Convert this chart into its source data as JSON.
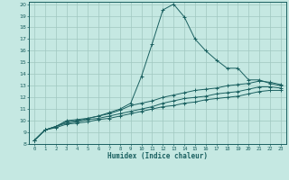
{
  "xlabel": "Humidex (Indice chaleur)",
  "ylabel": "",
  "background_color": "#c5e8e2",
  "grid_color": "#a0c8c0",
  "line_color": "#1a6060",
  "xlim": [
    -0.5,
    23.5
  ],
  "ylim": [
    8,
    20.2
  ],
  "xticks": [
    0,
    1,
    2,
    3,
    4,
    5,
    6,
    7,
    8,
    9,
    10,
    11,
    12,
    13,
    14,
    15,
    16,
    17,
    18,
    19,
    20,
    21,
    22,
    23
  ],
  "yticks": [
    8,
    9,
    10,
    11,
    12,
    13,
    14,
    15,
    16,
    17,
    18,
    19,
    20
  ],
  "series": [
    {
      "x": [
        0,
        1,
        2,
        3,
        4,
        5,
        6,
        7,
        8,
        9,
        10,
        11,
        12,
        13,
        14,
        15,
        16,
        17,
        18,
        19,
        20,
        21,
        22,
        23
      ],
      "y": [
        8.3,
        9.2,
        9.5,
        10.0,
        10.1,
        10.2,
        10.4,
        10.7,
        11.0,
        11.5,
        13.8,
        16.6,
        19.5,
        20.0,
        18.9,
        17.0,
        16.0,
        15.2,
        14.5,
        14.5,
        13.5,
        13.5,
        13.2,
        13.0
      ]
    },
    {
      "x": [
        0,
        1,
        2,
        3,
        4,
        5,
        6,
        7,
        8,
        9,
        10,
        11,
        12,
        13,
        14,
        15,
        16,
        17,
        18,
        19,
        20,
        21,
        22,
        23
      ],
      "y": [
        8.3,
        9.2,
        9.5,
        9.9,
        10.0,
        10.2,
        10.4,
        10.6,
        10.9,
        11.3,
        11.5,
        11.7,
        12.0,
        12.2,
        12.4,
        12.6,
        12.7,
        12.8,
        13.0,
        13.1,
        13.2,
        13.4,
        13.3,
        13.1
      ]
    },
    {
      "x": [
        0,
        1,
        2,
        3,
        4,
        5,
        6,
        7,
        8,
        9,
        10,
        11,
        12,
        13,
        14,
        15,
        16,
        17,
        18,
        19,
        20,
        21,
        22,
        23
      ],
      "y": [
        8.3,
        9.2,
        9.5,
        9.8,
        9.9,
        10.1,
        10.2,
        10.4,
        10.6,
        10.8,
        11.0,
        11.2,
        11.5,
        11.7,
        11.9,
        12.0,
        12.1,
        12.3,
        12.4,
        12.5,
        12.7,
        12.9,
        12.9,
        12.8
      ]
    },
    {
      "x": [
        0,
        1,
        2,
        3,
        4,
        5,
        6,
        7,
        8,
        9,
        10,
        11,
        12,
        13,
        14,
        15,
        16,
        17,
        18,
        19,
        20,
        21,
        22,
        23
      ],
      "y": [
        8.3,
        9.2,
        9.4,
        9.7,
        9.8,
        9.9,
        10.1,
        10.2,
        10.4,
        10.6,
        10.8,
        11.0,
        11.2,
        11.3,
        11.5,
        11.6,
        11.8,
        11.9,
        12.0,
        12.1,
        12.3,
        12.5,
        12.6,
        12.6
      ]
    }
  ]
}
